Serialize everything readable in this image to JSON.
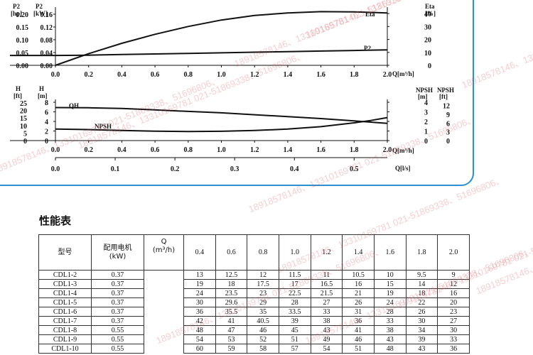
{
  "chart_data": [
    {
      "type": "line",
      "x": [
        0.0,
        0.2,
        0.4,
        0.6,
        0.8,
        1.0,
        1.2,
        1.4,
        1.6,
        1.8,
        2.0
      ],
      "xlabel": "Q[m³/h]",
      "xlim": [
        0.0,
        2.0
      ],
      "x_ticks": [
        "0.0",
        "0.2",
        "0.4",
        "0.6",
        "0.8",
        "1.0",
        "1.2",
        "1.4",
        "1.6",
        "1.8",
        "2.0"
      ],
      "left_axes": [
        {
          "unit_top": "P2",
          "unit_bottom": "[hp]",
          "ticks": [
            "0.00",
            "0.05",
            "0.10",
            "0.15",
            "0.20"
          ]
        },
        {
          "unit_top": "P2",
          "unit_bottom": "[kW]",
          "ticks": [
            "0.00",
            "0.04",
            "0.08",
            "0.12",
            "0.16"
          ],
          "ylim": [
            0.0,
            0.2
          ]
        }
      ],
      "right_axis": {
        "unit_top": "Eta",
        "unit_bottom": "[%]",
        "ticks": [
          "0",
          "10",
          "20",
          "30",
          "40"
        ],
        "ylim": [
          0,
          45
        ]
      },
      "series": [
        {
          "name": "Eta",
          "axis": "right",
          "values": [
            0,
            9,
            17,
            24,
            30,
            35,
            38.5,
            40.5,
            41.5,
            41.3,
            40.5
          ]
        },
        {
          "name": "P2",
          "axis": "left",
          "values": [
            0.034,
            0.035,
            0.037,
            0.039,
            0.041,
            0.043,
            0.045,
            0.047,
            0.049,
            0.051,
            0.053
          ]
        }
      ],
      "grid": false
    },
    {
      "type": "line",
      "x": [
        0.4,
        0.6,
        0.8,
        1.0,
        1.2,
        1.4,
        1.6,
        1.8,
        2.0
      ],
      "xlabel": "Q[m³/h]",
      "xlim": [
        0.0,
        2.0
      ],
      "x_ticks": [
        "0.0",
        "0.2",
        "0.4",
        "0.6",
        "0.8",
        "1.0",
        "1.2",
        "1.4",
        "1.6",
        "1.8",
        "2.0"
      ],
      "x2label": "Q[l/s]",
      "x2_ticks": [
        "0.0",
        "0.1",
        "0.2",
        "0.3",
        "0.4",
        "0.5"
      ],
      "left_axes": [
        {
          "unit_top": "H",
          "unit_bottom": "[ft]",
          "ticks": [
            "0",
            "5",
            "10",
            "15",
            "20",
            "25"
          ]
        },
        {
          "unit_top": "H",
          "unit_bottom": "[m]",
          "ticks": [
            "0",
            "2",
            "4",
            "6",
            "8"
          ],
          "ylim": [
            0,
            8.6
          ]
        }
      ],
      "right_axes": [
        {
          "unit_top": "NPSH",
          "unit_bottom": "[m]",
          "ticks": [
            "0",
            "1",
            "2",
            "3",
            "4"
          ],
          "ylim": [
            0,
            4.3
          ]
        },
        {
          "unit_top": "NPSH",
          "unit_bottom": "[ft]",
          "ticks": [
            "0",
            "3",
            "6",
            "9",
            "12"
          ]
        }
      ],
      "series": [
        {
          "name": "QH",
          "axis": "left",
          "x": [
            0.4,
            0.6,
            0.8,
            1.0,
            1.2,
            1.4,
            1.6,
            1.8,
            2.0
          ],
          "values": [
            6.7,
            6.4,
            6.1,
            5.8,
            5.4,
            5.0,
            4.6,
            4.1,
            3.6
          ]
        },
        {
          "name": "NPSH",
          "axis": "right",
          "x": [
            0.0,
            0.2,
            0.4,
            0.6,
            0.8,
            1.0,
            1.2,
            1.4,
            1.6,
            1.8,
            1.9,
            2.0
          ],
          "values": [
            1.2,
            1.15,
            1.05,
            0.98,
            0.95,
            0.97,
            1.05,
            1.2,
            1.45,
            1.85,
            2.1,
            2.4
          ]
        }
      ],
      "grid": false
    }
  ],
  "table": {
    "heading": "性能表",
    "col_model": "型号",
    "col_motor_line1": "配用电机",
    "col_motor_line2": "(kW)",
    "col_q_line1": "Q",
    "col_q_line2": "(m³/h)",
    "flows": [
      "0.4",
      "0.6",
      "0.8",
      "1.0",
      "1.2",
      "1.4",
      "1.6",
      "1.8",
      "2.0"
    ],
    "rows": [
      {
        "model": "CDL1-2",
        "motor": "0.37",
        "heads": [
          "13",
          "12.5",
          "12",
          "11.5",
          "11",
          "10.5",
          "10",
          "9.5",
          "9"
        ]
      },
      {
        "model": "CDL1-3",
        "motor": "0.37",
        "heads": [
          "19",
          "18",
          "17.5",
          "17",
          "16.5",
          "16",
          "15",
          "14",
          "12"
        ]
      },
      {
        "model": "CDL1-4",
        "motor": "0.37",
        "heads": [
          "24",
          "23.5",
          "23",
          "22.5",
          "21.5",
          "21",
          "19",
          "18",
          "16"
        ]
      },
      {
        "model": "CDL1-5",
        "motor": "0.37",
        "heads": [
          "30",
          "29.6",
          "29",
          "28",
          "27",
          "26",
          "24",
          "22",
          "20"
        ]
      },
      {
        "model": "CDL1-6",
        "motor": "0.37",
        "heads": [
          "36",
          "35.5",
          "35",
          "33.5",
          "33",
          "31",
          "28",
          "26",
          "23"
        ]
      },
      {
        "model": "CDL1-7",
        "motor": "0.37",
        "heads": [
          "42",
          "41",
          "40.5",
          "39",
          "38",
          "36",
          "33",
          "30",
          "27"
        ]
      },
      {
        "model": "CDL1-8",
        "motor": "0.55",
        "heads": [
          "48",
          "47",
          "46",
          "45",
          "43",
          "41",
          "38",
          "34",
          "30"
        ]
      },
      {
        "model": "CDL1-9",
        "motor": "0.55",
        "heads": [
          "54",
          "53",
          "52",
          "51",
          "49",
          "46",
          "43",
          "39",
          "33"
        ]
      },
      {
        "model": "CDL1-10",
        "motor": "0.55",
        "heads": [
          "60",
          "59",
          "58",
          "57",
          "54",
          "51",
          "48",
          "43",
          "36"
        ]
      }
    ]
  },
  "watermark": {
    "text": "18918578146、13310169781 021-51869338、51696806、",
    "color": "#dc505a"
  }
}
